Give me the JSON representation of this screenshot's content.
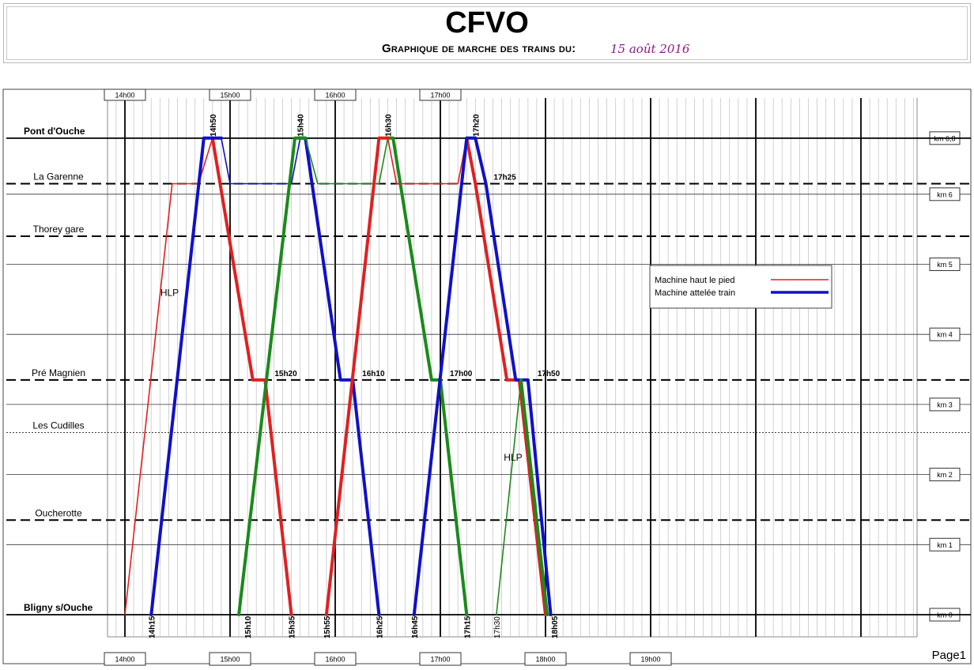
{
  "header": {
    "title": "CFVO",
    "subtitle": "Graphique de marche des trains du:",
    "date": "15 août 2016"
  },
  "footer": {
    "page": "Page1"
  },
  "chart_data": {
    "type": "line",
    "x_unit": "time",
    "xlim": [
      "14h00",
      "19h00"
    ],
    "ylim": [
      0,
      6.8
    ],
    "time_ticks_top": [
      "14h00",
      "15h00",
      "16h00",
      "17h00"
    ],
    "time_ticks_bottom": [
      "14h00",
      "15h00",
      "16h00",
      "17h00",
      "18h00",
      "19h00"
    ],
    "km_ticks": [
      {
        "label": "km 6,8",
        "km": 6.8
      },
      {
        "label": "km 6",
        "km": 6
      },
      {
        "label": "km 5",
        "km": 5
      },
      {
        "label": "km 4",
        "km": 4
      },
      {
        "label": "km 3",
        "km": 3
      },
      {
        "label": "km 2",
        "km": 2
      },
      {
        "label": "km 1",
        "km": 1
      },
      {
        "label": "km 0",
        "km": 0
      }
    ],
    "stations": [
      {
        "name": "Pont d'Ouche",
        "km": 6.8,
        "style": "terminus"
      },
      {
        "name": "La Garenne",
        "km": 6.15,
        "style": "stop"
      },
      {
        "name": "Thorey gare",
        "km": 5.4,
        "style": "stop"
      },
      {
        "name": "Pré Magnien",
        "km": 3.35,
        "style": "stop"
      },
      {
        "name": "Les Cudilles",
        "km": 2.6,
        "style": "halt"
      },
      {
        "name": "Oucherotte",
        "km": 1.35,
        "style": "stop"
      },
      {
        "name": "Bligny s/Ouche",
        "km": 0,
        "style": "terminus"
      }
    ],
    "legend": [
      {
        "name": "Machine haut le pied",
        "color": "#e02020"
      },
      {
        "name": "Machine attelée train",
        "color": "#1010c8"
      }
    ],
    "series": [
      {
        "color": "#e02020",
        "width": 1.6,
        "points": [
          [
            0,
            0
          ],
          [
            27,
            6.15
          ],
          [
            42,
            6.15
          ],
          [
            50,
            6.8
          ]
        ]
      },
      {
        "color": "#e02020",
        "width": 4,
        "points": [
          [
            50,
            6.8
          ],
          [
            73,
            3.35
          ],
          [
            80,
            3.35
          ],
          [
            95,
            0
          ]
        ]
      },
      {
        "color": "#1010c8",
        "width": 4,
        "points": [
          [
            15,
            0
          ],
          [
            45,
            6.8
          ],
          [
            55,
            6.8
          ]
        ]
      },
      {
        "color": "#1010c8",
        "width": 1.6,
        "points": [
          [
            55,
            6.8
          ],
          [
            60,
            6.15
          ],
          [
            95,
            6.15
          ],
          [
            100,
            6.8
          ]
        ]
      },
      {
        "color": "#1010c8",
        "width": 4,
        "points": [
          [
            100,
            6.8
          ],
          [
            103,
            6.8
          ],
          [
            123,
            3.35
          ],
          [
            130,
            3.35
          ],
          [
            145,
            0
          ]
        ]
      },
      {
        "color": "#1a8a1a",
        "width": 4,
        "points": [
          [
            65,
            0
          ],
          [
            97,
            6.8
          ],
          [
            103,
            6.8
          ]
        ]
      },
      {
        "color": "#1a8a1a",
        "width": 1.6,
        "points": [
          [
            103,
            6.8
          ],
          [
            110,
            6.15
          ],
          [
            145,
            6.15
          ],
          [
            150,
            6.8
          ]
        ]
      },
      {
        "color": "#1a8a1a",
        "width": 4,
        "points": [
          [
            150,
            6.8
          ],
          [
            153,
            6.8
          ],
          [
            175,
            3.35
          ],
          [
            180,
            3.35
          ],
          [
            195,
            0
          ]
        ]
      },
      {
        "color": "#e02020",
        "width": 4,
        "points": [
          [
            115,
            0
          ],
          [
            145,
            6.8
          ],
          [
            150,
            6.8
          ]
        ]
      },
      {
        "color": "#e02020",
        "width": 1.6,
        "points": [
          [
            150,
            6.8
          ],
          [
            155,
            6.15
          ],
          [
            190,
            6.15
          ],
          [
            195,
            6.8
          ]
        ]
      },
      {
        "color": "#e02020",
        "width": 4,
        "points": [
          [
            195,
            6.8
          ],
          [
            200,
            6.15
          ],
          [
            218,
            3.35
          ],
          [
            225,
            3.35
          ],
          [
            240,
            0
          ]
        ]
      },
      {
        "color": "#1010c8",
        "width": 4,
        "points": [
          [
            165,
            0
          ],
          [
            195,
            6.8
          ],
          [
            200,
            6.8
          ],
          [
            206,
            6.15
          ],
          [
            223,
            3.35
          ],
          [
            230,
            3.35
          ],
          [
            243,
            0
          ]
        ]
      },
      {
        "color": "#1a8a1a",
        "width": 1.6,
        "points": [
          [
            212,
            0
          ],
          [
            226,
            3.35
          ]
        ]
      },
      {
        "color": "#1a8a1a",
        "width": 4,
        "points": [
          [
            226,
            3.35
          ],
          [
            241,
            0
          ]
        ]
      }
    ],
    "annotations": [
      {
        "text": "14h15",
        "t": 15,
        "km": 0,
        "rot": true
      },
      {
        "text": "14h50",
        "t": 50,
        "km": 6.8,
        "rot": true
      },
      {
        "text": "15h10",
        "t": 70,
        "km": 0,
        "rot": true
      },
      {
        "text": "15h20",
        "t": 80,
        "km": 3.35,
        "rot": false
      },
      {
        "text": "15h35",
        "t": 95,
        "km": 0,
        "rot": true
      },
      {
        "text": "15h40",
        "t": 100,
        "km": 6.8,
        "rot": true
      },
      {
        "text": "15h55",
        "t": 115,
        "km": 0,
        "rot": true
      },
      {
        "text": "16h10",
        "t": 130,
        "km": 3.35,
        "rot": false
      },
      {
        "text": "16h25",
        "t": 145,
        "km": 0,
        "rot": true
      },
      {
        "text": "16h30",
        "t": 150,
        "km": 6.8,
        "rot": true
      },
      {
        "text": "16h45",
        "t": 165,
        "km": 0,
        "rot": true
      },
      {
        "text": "17h00",
        "t": 180,
        "km": 3.35,
        "rot": false
      },
      {
        "text": "17h15",
        "t": 195,
        "km": 0,
        "rot": true
      },
      {
        "text": "17h20",
        "t": 200,
        "km": 6.8,
        "rot": true
      },
      {
        "text": "17h25",
        "t": 205,
        "km": 6.15,
        "rot": false
      },
      {
        "text": "17h30",
        "t": 212,
        "km": 0,
        "rot": true,
        "normal": true
      },
      {
        "text": "17h50",
        "t": 230,
        "km": 3.35,
        "rot": false
      },
      {
        "text": "18h05",
        "t": 245,
        "km": 0,
        "rot": true
      }
    ],
    "labels": [
      {
        "text": "HLP",
        "t": 13,
        "km": 4.55
      },
      {
        "text": "HLP",
        "t": 209,
        "km": 2.2
      }
    ]
  }
}
